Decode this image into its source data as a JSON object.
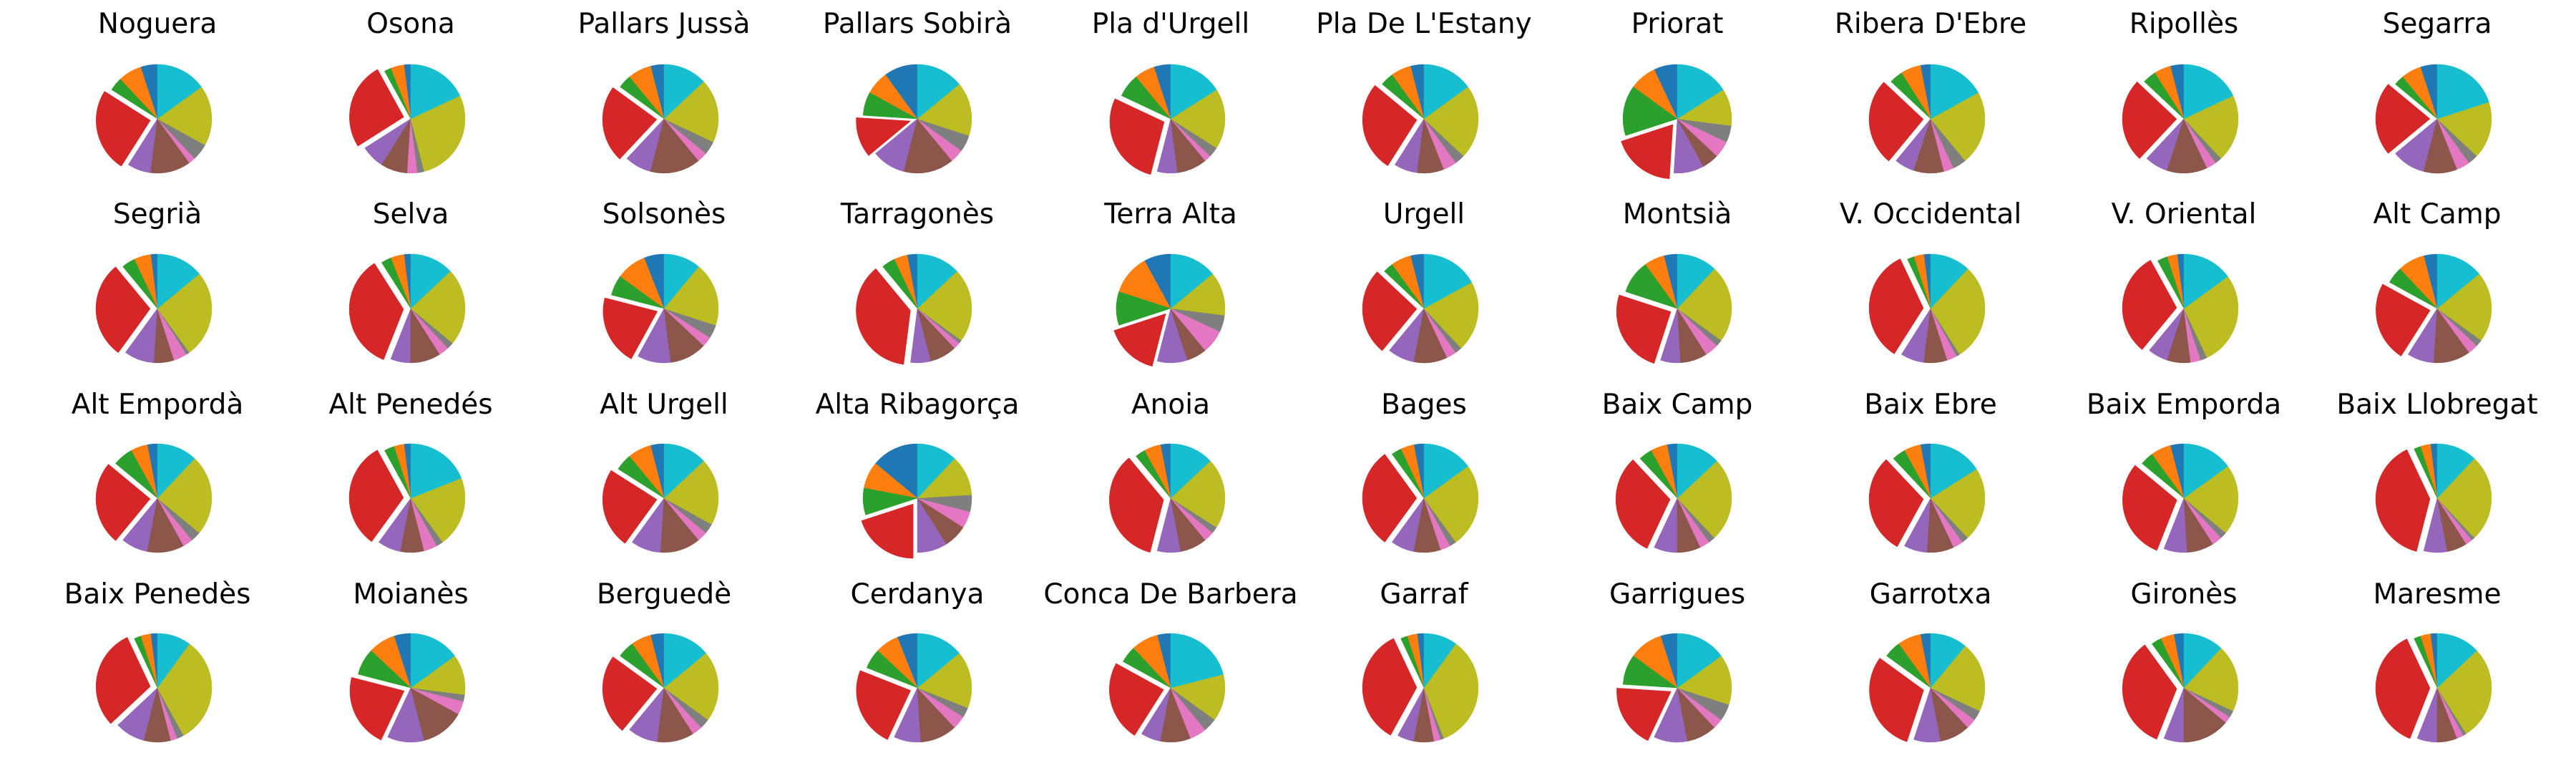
{
  "chart_data": {
    "type": "pie",
    "series_colors": [
      "#1f77b4",
      "#ff7f0e",
      "#2ca02c",
      "#d62728",
      "#9467bd",
      "#8c564b",
      "#e377c2",
      "#7f7f7f",
      "#bcbd22",
      "#17becf"
    ],
    "counterclockwise": true,
    "note_explode": "the red wedge (index 3) of every pie is pulled out from the center",
    "charts": [
      {
        "title": "Noguera",
        "values": [
          5,
          7,
          4,
          25,
          7,
          12,
          2,
          5,
          18,
          15
        ]
      },
      {
        "title": "Osona",
        "values": [
          2,
          4,
          2,
          26,
          7,
          8,
          3,
          2,
          28,
          18
        ]
      },
      {
        "title": "Pallars Jussà",
        "values": [
          4,
          7,
          4,
          23,
          8,
          15,
          3,
          4,
          19,
          13
        ]
      },
      {
        "title": "Pallars Sobirà",
        "values": [
          10,
          7,
          7,
          12,
          10,
          15,
          4,
          5,
          16,
          14
        ]
      },
      {
        "title": "Pla d'Urgell",
        "values": [
          5,
          6,
          7,
          28,
          6,
          9,
          2,
          3,
          18,
          16
        ]
      },
      {
        "title": "Pla De L'Estany",
        "values": [
          4,
          6,
          4,
          27,
          7,
          8,
          4,
          3,
          22,
          15
        ]
      },
      {
        "title": "Priorat",
        "values": [
          7,
          8,
          15,
          19,
          9,
          5,
          5,
          5,
          11,
          16
        ]
      },
      {
        "title": "Ribera D'Ebre",
        "values": [
          3,
          6,
          4,
          26,
          6,
          9,
          3,
          4,
          22,
          17
        ]
      },
      {
        "title": "Ripollès",
        "values": [
          4,
          5,
          4,
          25,
          7,
          12,
          3,
          2,
          20,
          18
        ]
      },
      {
        "title": "Segarra",
        "values": [
          5,
          6,
          3,
          22,
          10,
          10,
          4,
          3,
          17,
          20
        ]
      },
      {
        "title": "Segrià",
        "values": [
          2,
          5,
          4,
          29,
          9,
          6,
          4,
          1,
          26,
          14
        ]
      },
      {
        "title": "Selva",
        "values": [
          2,
          4,
          3,
          35,
          6,
          9,
          3,
          2,
          23,
          13
        ]
      },
      {
        "title": "Solsonès",
        "values": [
          6,
          9,
          6,
          21,
          10,
          11,
          3,
          4,
          19,
          11
        ]
      },
      {
        "title": "Tarragonès",
        "values": [
          3,
          4,
          4,
          37,
          6,
          8,
          2,
          1,
          22,
          13
        ]
      },
      {
        "title": "Terra Alta",
        "values": [
          8,
          12,
          10,
          16,
          9,
          6,
          7,
          5,
          13,
          14
        ]
      },
      {
        "title": "Urgell",
        "values": [
          4,
          6,
          3,
          26,
          8,
          10,
          3,
          2,
          21,
          17
        ]
      },
      {
        "title": "Montsià",
        "values": [
          4,
          6,
          10,
          25,
          6,
          8,
          4,
          2,
          23,
          12
        ]
      },
      {
        "title": "V. Occidental",
        "values": [
          2,
          3,
          2,
          34,
          7,
          7,
          3,
          1,
          29,
          12
        ]
      },
      {
        "title": "V. Oriental",
        "values": [
          2,
          3,
          3,
          31,
          6,
          7,
          3,
          2,
          28,
          15
        ]
      },
      {
        "title": "Alt Camp",
        "values": [
          4,
          8,
          5,
          24,
          8,
          11,
          3,
          2,
          21,
          14
        ]
      },
      {
        "title": "Alt Empordà",
        "values": [
          3,
          5,
          6,
          25,
          8,
          11,
          3,
          3,
          24,
          12
        ]
      },
      {
        "title": "Alt Penedés",
        "values": [
          2,
          3,
          3,
          32,
          7,
          7,
          4,
          2,
          21,
          19
        ]
      },
      {
        "title": "Alt Urgell",
        "values": [
          4,
          7,
          5,
          24,
          9,
          12,
          3,
          3,
          20,
          13
        ]
      },
      {
        "title": "Alta Ribagorça",
        "values": [
          14,
          8,
          8,
          20,
          9,
          7,
          5,
          5,
          12,
          12
        ]
      },
      {
        "title": "Anoia",
        "values": [
          3,
          5,
          3,
          35,
          7,
          8,
          3,
          2,
          21,
          13
        ]
      },
      {
        "title": "Bages",
        "values": [
          3,
          4,
          3,
          30,
          7,
          8,
          3,
          2,
          25,
          15
        ]
      },
      {
        "title": "Baix Camp",
        "values": [
          3,
          5,
          4,
          31,
          7,
          7,
          3,
          2,
          25,
          13
        ]
      },
      {
        "title": "Baix Ebre",
        "values": [
          3,
          5,
          4,
          30,
          7,
          8,
          3,
          2,
          22,
          16
        ]
      },
      {
        "title": "Baix Emporda",
        "values": [
          4,
          6,
          4,
          30,
          7,
          8,
          3,
          2,
          21,
          15
        ]
      },
      {
        "title": "Baix Llobregat",
        "values": [
          2,
          3,
          2,
          39,
          7,
          6,
          2,
          1,
          26,
          12
        ]
      },
      {
        "title": "Baix Penedès",
        "values": [
          2,
          3,
          2,
          30,
          9,
          8,
          2,
          2,
          32,
          10
        ]
      },
      {
        "title": "Moianès",
        "values": [
          5,
          8,
          8,
          22,
          11,
          13,
          4,
          2,
          12,
          15
        ]
      },
      {
        "title": "Berguedè",
        "values": [
          4,
          6,
          5,
          24,
          9,
          11,
          3,
          3,
          21,
          14
        ]
      },
      {
        "title": "Cerdanya",
        "values": [
          6,
          7,
          6,
          24,
          8,
          11,
          4,
          3,
          17,
          14
        ]
      },
      {
        "title": "Conca De Barbera",
        "values": [
          4,
          8,
          5,
          24,
          6,
          9,
          5,
          4,
          14,
          21
        ]
      },
      {
        "title": "Garraf",
        "values": [
          2,
          3,
          2,
          35,
          5,
          6,
          2,
          1,
          34,
          10
        ]
      },
      {
        "title": "Garrigues",
        "values": [
          5,
          10,
          9,
          19,
          10,
          9,
          3,
          5,
          15,
          15
        ]
      },
      {
        "title": "Garrotxa",
        "values": [
          3,
          7,
          5,
          30,
          8,
          9,
          3,
          3,
          21,
          11
        ]
      },
      {
        "title": "Gironès",
        "values": [
          3,
          4,
          3,
          34,
          6,
          14,
          2,
          2,
          20,
          12
        ]
      },
      {
        "title": "Maresme",
        "values": [
          2,
          3,
          2,
          37,
          6,
          6,
          2,
          1,
          28,
          13
        ]
      }
    ]
  }
}
